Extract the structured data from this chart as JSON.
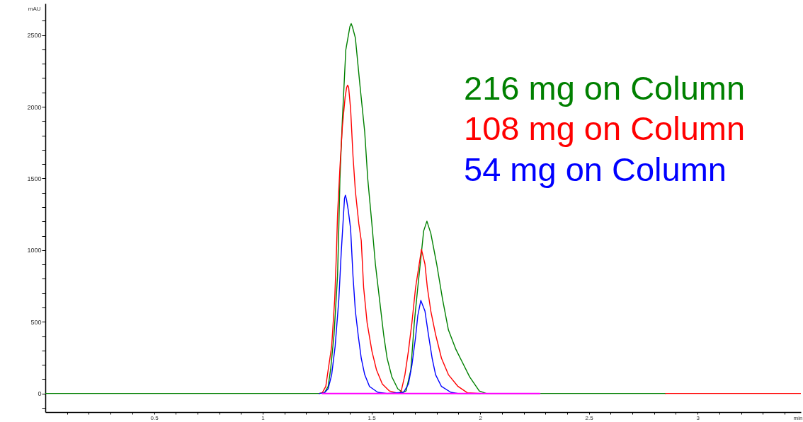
{
  "chart_data": {
    "type": "line",
    "xlabel": "min",
    "ylabel": "mAU",
    "xlim": [
      0,
      3.475
    ],
    "ylim": [
      -130,
      2720
    ],
    "xticks": [
      {
        "value": 0.1,
        "label": null
      },
      {
        "value": 0.2,
        "label": null
      },
      {
        "value": 0.3,
        "label": null
      },
      {
        "value": 0.4,
        "label": null
      },
      0.5,
      {
        "value": 0.6,
        "label": null
      },
      {
        "value": 0.7,
        "label": null
      },
      {
        "value": 0.8,
        "label": null
      },
      {
        "value": 0.9,
        "label": null
      },
      1,
      {
        "value": 1.1,
        "label": null
      },
      {
        "value": 1.2,
        "label": null
      },
      {
        "value": 1.3,
        "label": null
      },
      {
        "value": 1.4,
        "label": null
      },
      1.5,
      {
        "value": 1.6,
        "label": null
      },
      {
        "value": 1.7,
        "label": null
      },
      {
        "value": 1.8,
        "label": null
      },
      {
        "value": 1.9,
        "label": null
      },
      2,
      {
        "value": 2.1,
        "label": null
      },
      {
        "value": 2.2,
        "label": null
      },
      {
        "value": 2.3,
        "label": null
      },
      {
        "value": 2.4,
        "label": null
      },
      2.5,
      {
        "value": 2.6,
        "label": null
      },
      {
        "value": 2.7,
        "label": null
      },
      {
        "value": 2.8,
        "label": null
      },
      {
        "value": 2.9,
        "label": null
      },
      3,
      {
        "value": 3.1,
        "label": null
      },
      {
        "value": 3.2,
        "label": null
      },
      {
        "value": 3.3,
        "label": null
      },
      {
        "value": 3.4,
        "label": null
      }
    ],
    "yticks": [
      {
        "value": -100,
        "label": null
      },
      0,
      {
        "value": 100,
        "label": null
      },
      {
        "value": 200,
        "label": null
      },
      {
        "value": 300,
        "label": null
      },
      {
        "value": 400,
        "label": null
      },
      500,
      {
        "value": 600,
        "label": null
      },
      {
        "value": 700,
        "label": null
      },
      {
        "value": 800,
        "label": null
      },
      {
        "value": 900,
        "label": null
      },
      1000,
      {
        "value": 1100,
        "label": null
      },
      {
        "value": 1200,
        "label": null
      },
      {
        "value": 1300,
        "label": null
      },
      {
        "value": 1400,
        "label": null
      },
      1500,
      {
        "value": 1600,
        "label": null
      },
      {
        "value": 1700,
        "label": null
      },
      {
        "value": 1800,
        "label": null
      },
      {
        "value": 1900,
        "label": null
      },
      2000,
      {
        "value": 2100,
        "label": null
      },
      {
        "value": 2200,
        "label": null
      },
      {
        "value": 2300,
        "label": null
      },
      {
        "value": 2400,
        "label": null
      },
      2500,
      {
        "value": 2600,
        "label": null
      }
    ],
    "legend": "top right",
    "series": [
      {
        "name": "216 mg on Column",
        "color": "#008000",
        "x": [
          0,
          1.26,
          1.284,
          1.301,
          1.312,
          1.328,
          1.344,
          1.35,
          1.355,
          1.366,
          1.382,
          1.401,
          1.407,
          1.413,
          1.426,
          1.447,
          1.469,
          1.483,
          1.502,
          1.518,
          1.537,
          1.556,
          1.572,
          1.594,
          1.621,
          1.643,
          1.659,
          1.681,
          1.697,
          1.713,
          1.73,
          1.74,
          1.755,
          1.773,
          1.8,
          1.827,
          1.854,
          1.887,
          1.914,
          1.952,
          1.996,
          2.028,
          2.853
        ],
        "values": [
          0,
          0,
          5,
          49,
          166,
          412,
          821,
          1166,
          1496,
          1905,
          2397,
          2560,
          2580,
          2555,
          2480,
          2151,
          1823,
          1496,
          1182,
          903,
          657,
          411,
          246,
          115,
          33,
          8,
          17,
          164,
          493,
          739,
          985,
          1133,
          1202,
          1117,
          903,
          657,
          443,
          312,
          230,
          115,
          17,
          0,
          0
        ]
      },
      {
        "name": "108 mg on Column",
        "color": "#ff0000",
        "x": [
          1.26,
          1.274,
          1.29,
          1.301,
          1.317,
          1.331,
          1.339,
          1.344,
          1.355,
          1.366,
          1.379,
          1.386,
          1.39,
          1.395,
          1.404,
          1.415,
          1.426,
          1.442,
          1.453,
          1.464,
          1.48,
          1.502,
          1.523,
          1.55,
          1.583,
          1.626,
          1.637,
          1.654,
          1.67,
          1.686,
          1.703,
          1.73,
          1.746,
          1.757,
          1.773,
          1.795,
          1.822,
          1.854,
          1.898,
          1.941,
          2.0,
          2.1,
          2.853,
          3.475
        ],
        "values": [
          0,
          5,
          49,
          165,
          329,
          657,
          985,
          1248,
          1576,
          1856,
          2069,
          2135,
          2151,
          2135,
          1987,
          1659,
          1412,
          1182,
          1067,
          739,
          493,
          296,
          165,
          66,
          17,
          0,
          17,
          131,
          296,
          493,
          739,
          1005,
          903,
          739,
          575,
          411,
          246,
          131,
          49,
          5,
          0,
          null,
          0,
          0
        ]
      },
      {
        "name": "54 mg on Column",
        "color": "#0000ff",
        "x": [
          1.26,
          1.284,
          1.301,
          1.317,
          1.333,
          1.35,
          1.361,
          1.376,
          1.38,
          1.385,
          1.393,
          1.404,
          1.415,
          1.426,
          1.44,
          1.453,
          1.469,
          1.491,
          1.529,
          1.572,
          1.648,
          1.67,
          1.686,
          1.703,
          1.713,
          1.727,
          1.746,
          1.762,
          1.779,
          1.795,
          1.822,
          1.865,
          1.898,
          2.0
        ],
        "values": [
          0,
          5,
          33,
          131,
          329,
          657,
          985,
          1360,
          1383,
          1355,
          1281,
          1150,
          821,
          575,
          394,
          246,
          131,
          49,
          8,
          0,
          8,
          66,
          197,
          394,
          542,
          649,
          575,
          411,
          246,
          131,
          49,
          8,
          0,
          0
        ]
      },
      {
        "color": "#ff00ff",
        "x": [
          1.274,
          2.274
        ],
        "values": [
          0,
          0
        ]
      }
    ]
  }
}
